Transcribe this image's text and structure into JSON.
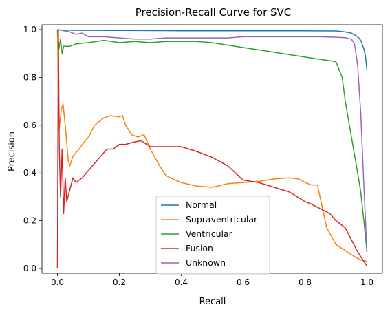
{
  "chart_data": {
    "type": "line",
    "title": "Precision-Recall Curve for SVC",
    "xlabel": "Recall",
    "ylabel": "Precision",
    "xlim": [
      -0.05,
      1.05
    ],
    "ylim": [
      -0.02,
      1.02
    ],
    "xticks": [
      0.0,
      0.2,
      0.4,
      0.6,
      0.8,
      1.0
    ],
    "xtick_labels": [
      "0.0",
      "0.2",
      "0.4",
      "0.6",
      "0.8",
      "1.0"
    ],
    "yticks": [
      0.0,
      0.2,
      0.4,
      0.6,
      0.8,
      1.0
    ],
    "ytick_labels": [
      "0.0",
      "0.2",
      "0.4",
      "0.6",
      "0.8",
      "1.0"
    ],
    "grid": false,
    "legend_position": "lower-center",
    "series": [
      {
        "name": "Normal",
        "color": "#1f77b4",
        "points": [
          [
            0.0,
            1.0
          ],
          [
            0.01,
            0.998
          ],
          [
            0.05,
            0.997
          ],
          [
            0.2,
            0.996
          ],
          [
            0.4,
            0.995
          ],
          [
            0.6,
            0.995
          ],
          [
            0.8,
            0.995
          ],
          [
            0.9,
            0.994
          ],
          [
            0.93,
            0.99
          ],
          [
            0.95,
            0.985
          ],
          [
            0.97,
            0.97
          ],
          [
            0.98,
            0.955
          ],
          [
            0.99,
            0.92
          ],
          [
            0.995,
            0.89
          ],
          [
            1.0,
            0.83
          ]
        ]
      },
      {
        "name": "Supraventricular",
        "color": "#ff7f0e",
        "points": [
          [
            0.0,
            1.0
          ],
          [
            0.005,
            0.58
          ],
          [
            0.012,
            0.66
          ],
          [
            0.018,
            0.69
          ],
          [
            0.025,
            0.6
          ],
          [
            0.035,
            0.45
          ],
          [
            0.04,
            0.43
          ],
          [
            0.05,
            0.47
          ],
          [
            0.07,
            0.5
          ],
          [
            0.08,
            0.52
          ],
          [
            0.1,
            0.55
          ],
          [
            0.12,
            0.6
          ],
          [
            0.15,
            0.63
          ],
          [
            0.17,
            0.64
          ],
          [
            0.2,
            0.635
          ],
          [
            0.21,
            0.64
          ],
          [
            0.22,
            0.6
          ],
          [
            0.24,
            0.56
          ],
          [
            0.26,
            0.55
          ],
          [
            0.28,
            0.56
          ],
          [
            0.3,
            0.5
          ],
          [
            0.33,
            0.43
          ],
          [
            0.35,
            0.39
          ],
          [
            0.38,
            0.37
          ],
          [
            0.4,
            0.36
          ],
          [
            0.45,
            0.345
          ],
          [
            0.5,
            0.34
          ],
          [
            0.55,
            0.355
          ],
          [
            0.6,
            0.36
          ],
          [
            0.65,
            0.365
          ],
          [
            0.7,
            0.375
          ],
          [
            0.75,
            0.38
          ],
          [
            0.78,
            0.375
          ],
          [
            0.8,
            0.36
          ],
          [
            0.82,
            0.35
          ],
          [
            0.84,
            0.35
          ],
          [
            0.85,
            0.29
          ],
          [
            0.87,
            0.17
          ],
          [
            0.9,
            0.1
          ],
          [
            0.93,
            0.075
          ],
          [
            0.96,
            0.05
          ],
          [
            0.98,
            0.035
          ],
          [
            1.0,
            0.03
          ]
        ]
      },
      {
        "name": "Ventricular",
        "color": "#2ca02c",
        "points": [
          [
            0.0,
            1.0
          ],
          [
            0.005,
            0.92
          ],
          [
            0.01,
            0.96
          ],
          [
            0.015,
            0.9
          ],
          [
            0.02,
            0.93
          ],
          [
            0.04,
            0.93
          ],
          [
            0.06,
            0.94
          ],
          [
            0.1,
            0.945
          ],
          [
            0.15,
            0.955
          ],
          [
            0.2,
            0.945
          ],
          [
            0.25,
            0.95
          ],
          [
            0.3,
            0.945
          ],
          [
            0.35,
            0.95
          ],
          [
            0.4,
            0.95
          ],
          [
            0.45,
            0.95
          ],
          [
            0.5,
            0.945
          ],
          [
            0.55,
            0.935
          ],
          [
            0.6,
            0.925
          ],
          [
            0.65,
            0.915
          ],
          [
            0.7,
            0.905
          ],
          [
            0.75,
            0.895
          ],
          [
            0.8,
            0.885
          ],
          [
            0.85,
            0.875
          ],
          [
            0.88,
            0.87
          ],
          [
            0.9,
            0.865
          ],
          [
            0.92,
            0.8
          ],
          [
            0.93,
            0.7
          ],
          [
            0.95,
            0.55
          ],
          [
            0.97,
            0.4
          ],
          [
            0.98,
            0.32
          ],
          [
            0.99,
            0.2
          ],
          [
            1.0,
            0.07
          ]
        ]
      },
      {
        "name": "Fusion",
        "color": "#d62728",
        "points": [
          [
            0.0,
            0.0
          ],
          [
            0.003,
            1.0
          ],
          [
            0.006,
            0.5
          ],
          [
            0.01,
            0.3
          ],
          [
            0.015,
            0.5
          ],
          [
            0.02,
            0.23
          ],
          [
            0.025,
            0.38
          ],
          [
            0.03,
            0.28
          ],
          [
            0.05,
            0.38
          ],
          [
            0.06,
            0.36
          ],
          [
            0.08,
            0.38
          ],
          [
            0.1,
            0.41
          ],
          [
            0.12,
            0.44
          ],
          [
            0.14,
            0.47
          ],
          [
            0.16,
            0.5
          ],
          [
            0.18,
            0.5
          ],
          [
            0.2,
            0.52
          ],
          [
            0.22,
            0.52
          ],
          [
            0.25,
            0.53
          ],
          [
            0.27,
            0.535
          ],
          [
            0.3,
            0.51
          ],
          [
            0.35,
            0.51
          ],
          [
            0.4,
            0.51
          ],
          [
            0.45,
            0.49
          ],
          [
            0.5,
            0.465
          ],
          [
            0.55,
            0.43
          ],
          [
            0.6,
            0.37
          ],
          [
            0.65,
            0.36
          ],
          [
            0.7,
            0.34
          ],
          [
            0.75,
            0.32
          ],
          [
            0.8,
            0.28
          ],
          [
            0.82,
            0.27
          ],
          [
            0.85,
            0.25
          ],
          [
            0.88,
            0.23
          ],
          [
            0.9,
            0.2
          ],
          [
            0.93,
            0.17
          ],
          [
            0.95,
            0.12
          ],
          [
            0.97,
            0.07
          ],
          [
            0.99,
            0.03
          ],
          [
            1.0,
            0.01
          ]
        ]
      },
      {
        "name": "Unknown",
        "color": "#9467bd",
        "points": [
          [
            0.0,
            1.0
          ],
          [
            0.02,
            0.995
          ],
          [
            0.04,
            0.99
          ],
          [
            0.06,
            0.98
          ],
          [
            0.08,
            0.985
          ],
          [
            0.1,
            0.97
          ],
          [
            0.15,
            0.97
          ],
          [
            0.2,
            0.965
          ],
          [
            0.25,
            0.96
          ],
          [
            0.3,
            0.96
          ],
          [
            0.35,
            0.965
          ],
          [
            0.4,
            0.965
          ],
          [
            0.45,
            0.965
          ],
          [
            0.5,
            0.965
          ],
          [
            0.55,
            0.965
          ],
          [
            0.6,
            0.97
          ],
          [
            0.65,
            0.97
          ],
          [
            0.7,
            0.97
          ],
          [
            0.75,
            0.97
          ],
          [
            0.8,
            0.97
          ],
          [
            0.85,
            0.97
          ],
          [
            0.9,
            0.968
          ],
          [
            0.93,
            0.966
          ],
          [
            0.95,
            0.96
          ],
          [
            0.96,
            0.94
          ],
          [
            0.97,
            0.85
          ],
          [
            0.98,
            0.65
          ],
          [
            0.99,
            0.35
          ],
          [
            1.0,
            0.07
          ]
        ]
      }
    ]
  }
}
